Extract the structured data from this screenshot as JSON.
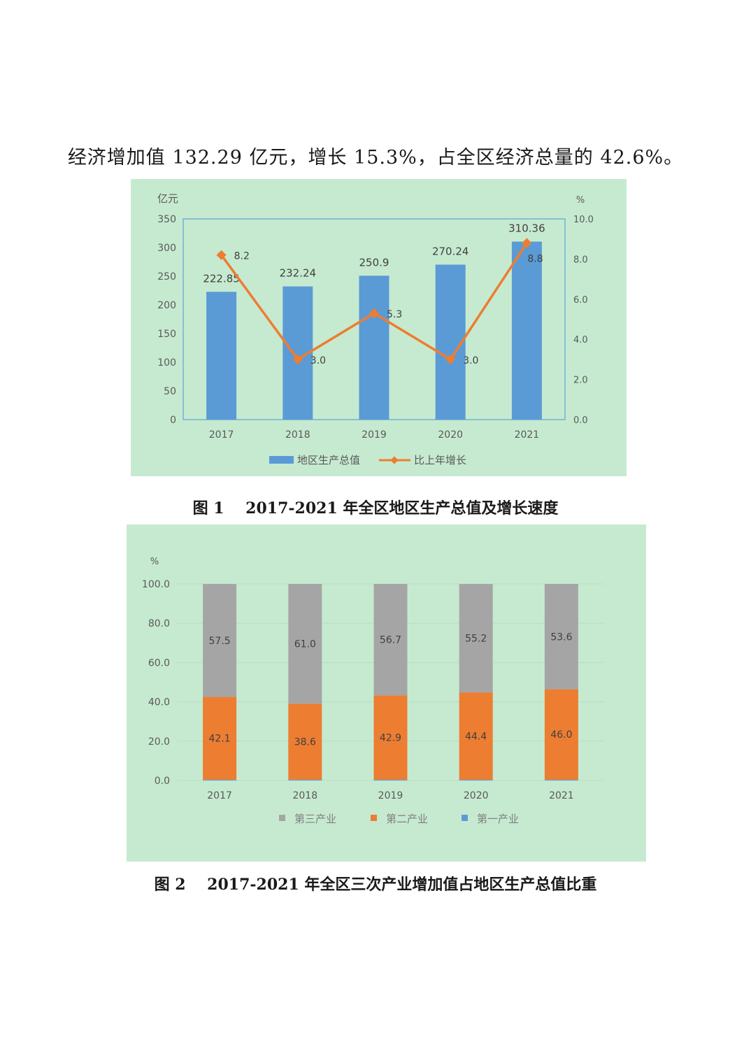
{
  "intro_text": "经济增加值 132.29 亿元，增长 15.3%，占全区经济总量的 42.6%。",
  "figure1": {
    "caption_prefix": "图 1",
    "caption_text": "2017-2021 年全区地区生产总值及增长速度"
  },
  "figure2": {
    "caption_prefix": "图 2",
    "caption_text": "2017-2021 年全区三次产业增加值占地区生产总值比重"
  },
  "colors": {
    "panel_bg": "#c6ead0",
    "bar_blue": "#5b9bd5",
    "line_orange": "#ed7d31",
    "gray": "#a5a5a5",
    "orange": "#ed7d31",
    "blue": "#5b9bd5"
  },
  "chart_data": [
    {
      "type": "bar",
      "categories": [
        "2017",
        "2018",
        "2019",
        "2020",
        "2021"
      ],
      "ylabel": "亿元",
      "y2label": "%",
      "ylim": [
        0,
        350
      ],
      "y2lim": [
        0,
        10
      ],
      "yticks": [
        "0",
        "50",
        "100",
        "150",
        "200",
        "250",
        "300",
        "350"
      ],
      "y2ticks": [
        "0.0",
        "2.0",
        "4.0",
        "6.0",
        "8.0",
        "10.0"
      ],
      "series": [
        {
          "name": "地区生产总值",
          "type": "bar",
          "axis": "left",
          "values": [
            222.85,
            232.24,
            250.9,
            270.24,
            310.36
          ],
          "labels": [
            "222.85",
            "232.24",
            "250.9",
            "270.24",
            "310.36"
          ]
        },
        {
          "name": "比上年增长",
          "type": "line",
          "axis": "right",
          "values": [
            8.2,
            3.0,
            5.3,
            3.0,
            8.8
          ],
          "labels": [
            "8.2",
            "3.0",
            "5.3",
            "3.0",
            "8.8"
          ]
        }
      ],
      "legend": "bottom",
      "grid": false
    },
    {
      "type": "bar",
      "stacked": true,
      "categories": [
        "2017",
        "2018",
        "2019",
        "2020",
        "2021"
      ],
      "ylabel": "%",
      "ylim": [
        0,
        100
      ],
      "yticks": [
        "0.0",
        "20.0",
        "40.0",
        "60.0",
        "80.0",
        "100.0"
      ],
      "series": [
        {
          "name": "第一产业",
          "values": [
            0.4,
            0.4,
            0.4,
            0.4,
            0.4
          ],
          "labels": []
        },
        {
          "name": "第二产业",
          "values": [
            42.1,
            38.6,
            42.9,
            44.4,
            46.0
          ],
          "labels": [
            "42.1",
            "38.6",
            "42.9",
            "44.4",
            "46.0"
          ]
        },
        {
          "name": "第三产业",
          "values": [
            57.5,
            61.0,
            56.7,
            55.2,
            53.6
          ],
          "labels": [
            "57.5",
            "61.0",
            "56.7",
            "55.2",
            "53.6"
          ]
        }
      ],
      "legend_order": [
        "第三产业",
        "第二产业",
        "第一产业"
      ],
      "legend": "bottom",
      "grid": true
    }
  ]
}
